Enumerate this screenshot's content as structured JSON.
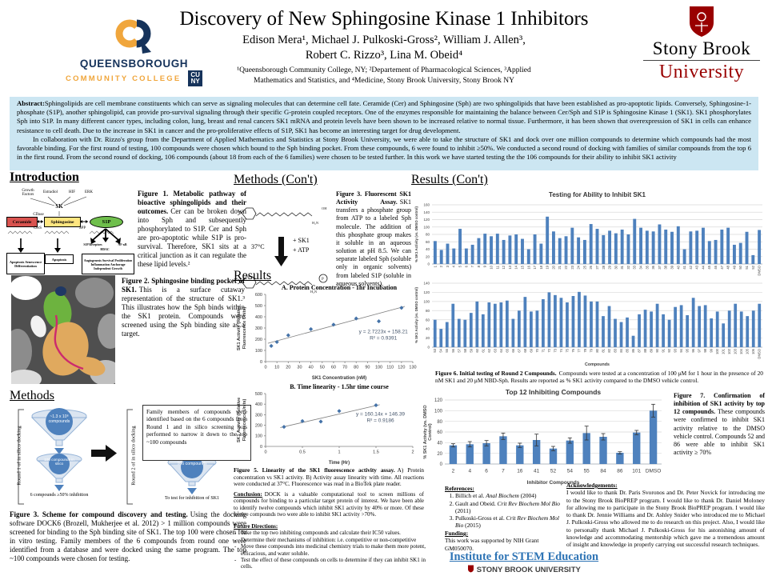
{
  "header": {
    "title": "Discovery of New Sphingosine Kinase 1 Inhibitors",
    "authors_line1": "Edison Mera¹, Michael J. Pulkoski-Gross², William J. Allen³,",
    "authors_line2": "Robert C. Rizzo³, Lina M. Obeid⁴",
    "affiliation_line1": "¹Queensborough Community College, NY; ²Departement of Pharmacological Sciences, ³Applied",
    "affiliation_line2": "Mathematics and Statistics, and ⁴Medicine, Stony Brook University, Stony Brook NY",
    "qcc_logo": {
      "name": "QUEENSBOROUGH",
      "subname": "COMMUNITY COLLEGE",
      "cuny_top": "CU",
      "cuny_bottom": "NY"
    },
    "sbu_logo": {
      "line1": "Stony Brook",
      "line2": "University"
    }
  },
  "abstract": {
    "label": "Abstract:",
    "p1": "Sphingolipids are cell membrane constituents which can serve as signaling molecules that can determine cell fate. Ceramide (Cer) and Sphingosine (Sph) are two sphingolipids that have been established as pro-apoptotic lipids. Conversely, Sphingosine-1-phosphate (S1P), another sphingolipid, can provide pro-survival signaling through their specific G-protein coupled receptors. One of the enzymes responsible for maintaining the balance between Cer/Sph and S1P is Sphingosine Kinase 1 (SK1). SK1 phosphorylates Sph into S1P. In many different cancer types, including colon, lung, breast and renal cancers SK1 mRNA and protein levels have been shown to be increased relative to normal tissue.  Furthermore, it has been shown that overexpression of SK1 in cells can enhance resistance to cell death. Due to the increase in SK1 in cancer and the pro-proliferative effects of S1P, SK1 has become an interesting target for drug development.",
    "p2": "In collaboration with Dr. Rizzo's group from the Department of Applied Mathematics and Statistics at Stony Brook University, we were able to take the structure of SK1 and dock over one million compounds to determine which compounds had the most favorable binding. For the first round of testing, 100 compounds were chosen which bound to the Sph binding pocket.  From these compounds, 6 were found to inhibit ≥50%.  We conducted a second round of docking with families of similar compounds from the top 6 in the first round. From the second round of docking, 106 compounds (about 18 from each of the 6 families) were chosen to be tested further. In this work we have started testing the the 106 compounds for their ability to inhibit SK1 activity"
  },
  "sections": {
    "introduction": "Introduction",
    "methods": "Methods",
    "methods_cont": "Methods (Con't)",
    "results": "Results",
    "results_cont": "Results (Con't)"
  },
  "figure1": {
    "caption_bold": "Figure 1. Metabolic pathway of bioactive sphingolipids and their outcomes.",
    "caption_text": "Cer can be broken down into Sph and subsequently phosphorylated to S1P. Cer and Sph are pro-apoptotic while S1P is pro-survival. Therefore, SK1 sits at a critical junction as it can regulate the these lipid levels.²",
    "diagram": {
      "growth_factors": "Growth Factors",
      "estradiol": "Estradiol",
      "hif": "HIF",
      "erk": "ERK",
      "sk": "SK",
      "cdase": "CDase",
      "cers": "CerS",
      "spp": "SPP",
      "ceramide": "Ceramide",
      "sphingosine": "Sphingosine",
      "s1p": "S1P",
      "s1p_receptors": "S1P Receptors",
      "nfkb": "NF-κB",
      "hdac": "HDAC",
      "outcome1": "Apoptosis Senescence Differentiation",
      "outcome2": "Apoptosis",
      "outcome3": "Angiogenesis Survival Proliferation Inflammation Anchorage Independent Growth"
    }
  },
  "figure2": {
    "caption_bold": "Figure 2. Sphingosine binding pocket of SK1.",
    "caption_text": "This is a surface cutaway representation of the structure of SK1.³ This illustrates how the Sph binds within the SK1 protein. Compounds were screened using the Sph binding site as a target."
  },
  "methods_flow": {
    "round1_label": "Round 1 of in silico docking",
    "round2_label": "Round 2 of in silico docking",
    "funnel1_text": "~1.3 x 10⁶ compounds",
    "funnel2_text": "100 compounds in silico",
    "funnel2_result": "6 compounds ≥50% inhibition",
    "family_box": "Family members of compounds were identified based on the 6 compounds from Round 1 and in silico screening was performed to narrow it down to the top ~100 compounds",
    "funnel3_text": "106 compounds",
    "funnel3_result": "To test for inhibition of SK1"
  },
  "figure3_scheme": {
    "caption_bold": "Figure 3. Scheme for compound discovery and testing.",
    "caption_text": "Using the docking software DOCK6 (Brozell, Mukherjee et al. 2012) > 1 million compounds were screened for binding to the Sph binding site of SK1. The top 100 were chosen for in vitro testing. Family members of the 6 compounds from round one were identified from a database and were docked using the same program. The top ~100 compounds were chosen for testing."
  },
  "reaction": {
    "temperature": "37°C",
    "reagent1": "+ SK1",
    "reagent2": "+ ATP"
  },
  "figure3_assay": {
    "caption_bold": "Figure 3. Fluorescent SK1 Activity Assay.",
    "caption_text": "SK1 transfers a phosphate group from ATP to a labeled Sph molecule. The addition of this phosphate group makes it soluble in an aqueous solution at pH 8.5. We can separate labeled Sph (soluble only in organic solvents) from labeled S1P (soluble in aqueous solvents)."
  },
  "figure5": {
    "caption_bold": "Figure 5. Linearity of the SK1 fluorescence activity assay.",
    "caption_text": "A) Protein concentration vs SK1 activity. B) Activity assay linearity with time. All reactions were conducted at 37°C. Fluorescence was read in a BioTek plate reader."
  },
  "figure6": {
    "caption_bold": "Figure 6. Initial testing of Round 2 Compounds.",
    "caption_text": "Compounds were tested at a concentration of 100 μM for 1 hour in the presence of 20 nM SK1 and 20 μM NBD-Sph. Results are reported as % SK1 activity compared to the DMSO vehicle control."
  },
  "figure7": {
    "caption_bold": "Figure 7. Confirmation of inhibition of SK1 activity by top 12 compounds.",
    "caption_text": "These compounds were confirmed to inhibit SK1 activity relative to the DMSO vehicle control. Compounds 52 and 86 were able to inhibit SK1 activity ≥ 70%"
  },
  "conclusion": {
    "label": "Conclusion:",
    "text": "DOCK is a valuable computational tool to screen millions of compounds for binding to a particular target protein of interest. We have been able to identify twelve compounds which inhibit SK1 activity by 40% or more. Of these twelve compounds two were able to inhibit SK1 activity >70%."
  },
  "future_directions": {
    "label": "Future Directions:",
    "items": [
      "Take the top two inhibiting compounds and calculate their IC50 values.",
      "Determine their mechanisms of inhibition: i.e. competitive or non-competitive",
      "Move these compounds into medicinal chemistry trials to make them more potent, efficacious, and water soluble.",
      "Test the effect of these compounds on cells to determine if they can inhibit SK1 in cells."
    ]
  },
  "references": {
    "label": "References:",
    "items": [
      {
        "pre": "Billich et al. ",
        "journal": "Anal Biochem",
        "post": " (2004)"
      },
      {
        "pre": "Gault and Obeid. ",
        "journal": "Crit Rev Biochem Mol Bio",
        "post": " (2011)"
      },
      {
        "pre": "Pulkoski-Gross et al. ",
        "journal": "Crit Rev Biochem Mol Bio",
        "post": " (2015)"
      }
    ]
  },
  "funding": {
    "label": "Funding:",
    "text": "This work was supported by NIH Grant GM050070."
  },
  "acknowledgements": {
    "label": "Acknowledgements:",
    "text": "I would like to thank Dr. Paris Svoronos and Dr. Peter Novick for introducing me to the Stony Brook BioPREP program. I would like to thank Dr. Daniel Moloney for allowing me to participate in the Stony Brook BioPREP program. I would like to thank Dr. Jennie Williams and Dr. Ashley Snider who introduced me to Michael J. Pulkoski-Gross who allowed me to do research on this project. Also, I would like to personally thank Michael J. Pulkoski-Gross for his astonishing amount of knowledge and accommodating mentorship which gave me a tremendous amount of insight and knowledge in properly carrying out successful research techniques."
  },
  "stem_logo": {
    "line1": "Institute for STEM Education",
    "line2": "STONY BROOK UNIVERSITY"
  },
  "colors": {
    "bar_blue": "#4e81bd",
    "abstract_bg": "#cce6f2",
    "sbu_red": "#990000",
    "qcc_navy": "#16335b",
    "qcc_gold": "#f0a63c",
    "stem_blue": "#2e74b5"
  },
  "chart_data": [
    {
      "type": "bar",
      "title": "Testing for Ability to Inhibit SK1",
      "ylabel": "% SK1 Activity (vs. DMSO control)",
      "ylim": [
        0,
        160
      ],
      "ystep": 20,
      "categories": [
        "1",
        "2",
        "3",
        "4",
        "5",
        "6",
        "7",
        "8",
        "9",
        "10",
        "11",
        "12",
        "13",
        "14",
        "15",
        "16",
        "17",
        "18",
        "19",
        "20",
        "21",
        "22",
        "23",
        "24",
        "25",
        "26",
        "27",
        "28",
        "29",
        "30",
        "31",
        "32",
        "33",
        "34",
        "35",
        "36",
        "37",
        "38",
        "39",
        "40",
        "41",
        "42",
        "43",
        "44",
        "45",
        "46",
        "47",
        "48",
        "49",
        "50",
        "51",
        "52",
        "DMSO"
      ],
      "values": [
        62,
        38,
        55,
        42,
        95,
        42,
        52,
        70,
        82,
        75,
        82,
        65,
        77,
        80,
        68,
        40,
        80,
        55,
        128,
        88,
        70,
        75,
        98,
        72,
        65,
        108,
        95,
        78,
        90,
        83,
        93,
        80,
        122,
        98,
        90,
        88,
        107,
        93,
        87,
        102,
        40,
        88,
        90,
        98,
        62,
        65,
        93,
        98,
        52,
        57,
        87,
        24,
        92
      ]
    },
    {
      "type": "bar",
      "title": "",
      "xlabel": "Compounds",
      "ylabel": "% SK1 Activity (vs. DMSO control)",
      "ylim": [
        0,
        140
      ],
      "ystep": 20,
      "categories": [
        "53",
        "54",
        "55",
        "56",
        "57",
        "58",
        "59",
        "60",
        "61",
        "62",
        "63",
        "64",
        "65",
        "66",
        "67",
        "68",
        "69",
        "70",
        "71",
        "72",
        "73",
        "74",
        "75",
        "76",
        "77",
        "78",
        "79",
        "80",
        "81",
        "82",
        "83",
        "84",
        "85",
        "86",
        "87",
        "88",
        "89",
        "90",
        "91",
        "92",
        "93",
        "94",
        "95",
        "96",
        "97",
        "98",
        "99",
        "100",
        "101",
        "102",
        "103",
        "104",
        "105",
        "106",
        "DMSO"
      ],
      "values": [
        60,
        40,
        55,
        95,
        62,
        60,
        75,
        100,
        72,
        98,
        95,
        98,
        102,
        62,
        80,
        110,
        78,
        80,
        105,
        120,
        114,
        108,
        98,
        112,
        121,
        113,
        100,
        100,
        68,
        90,
        62,
        55,
        65,
        25,
        72,
        82,
        78,
        95,
        72,
        60,
        88,
        92,
        70,
        108,
        90,
        92,
        63,
        78,
        52,
        80,
        95,
        78,
        68,
        80,
        95
      ]
    },
    {
      "type": "bar",
      "title": "Top 12 Inhibiting Compounds",
      "xlabel": "Inhibitor Compounds",
      "ylabel_lines": [
        "% SK1 Activity (vs. DMSO",
        "Control)"
      ],
      "ylim": [
        0,
        120
      ],
      "ystep": 20,
      "categories": [
        "2",
        "4",
        "6",
        "7",
        "16",
        "41",
        "52",
        "54",
        "55",
        "84",
        "86",
        "101",
        "DMSO"
      ],
      "values": [
        35,
        37,
        39,
        52,
        35,
        45,
        29,
        44,
        58,
        51,
        21,
        59,
        100
      ],
      "errors": [
        3,
        5,
        5,
        6,
        4,
        11,
        4,
        5,
        13,
        6,
        2,
        4,
        12
      ]
    },
    {
      "type": "scatter",
      "title": "A. Protein Concentration  - 1hr Incubation",
      "xlabel": "SK1 Concentration (nM)",
      "ylabel_lines": [
        "SK1 Activity (Relative",
        "Fluorescence Units)"
      ],
      "xlim": [
        0,
        130
      ],
      "xstep": 10,
      "ylim": [
        0,
        600
      ],
      "ystep": 100,
      "x": [
        5,
        10,
        20,
        40,
        60,
        80,
        100,
        120
      ],
      "y": [
        140,
        175,
        235,
        290,
        330,
        385,
        360,
        480
      ],
      "trend": {
        "slope": 2.7223,
        "intercept": 158.21
      },
      "equation": "y = 2.7223x + 158.21",
      "r2": "R² = 0.9391"
    },
    {
      "type": "scatter",
      "title": "B. Time linearity - 1.5hr time course",
      "xlabel": "Time (Hr)",
      "ylabel_lines": [
        "SK1 Activity (Relative",
        "Fluorescence Units)"
      ],
      "xlim": [
        0,
        2
      ],
      "xstep": 0.5,
      "ylim": [
        0,
        500
      ],
      "ystep": 100,
      "x": [
        0.25,
        0.5,
        0.75,
        1,
        1.5
      ],
      "y": [
        185,
        240,
        235,
        335,
        390
      ],
      "trend": {
        "slope": 160.14,
        "intercept": 146.39
      },
      "equation": "y = 160.14x + 146.39",
      "r2": "R² = 0.9186"
    }
  ]
}
